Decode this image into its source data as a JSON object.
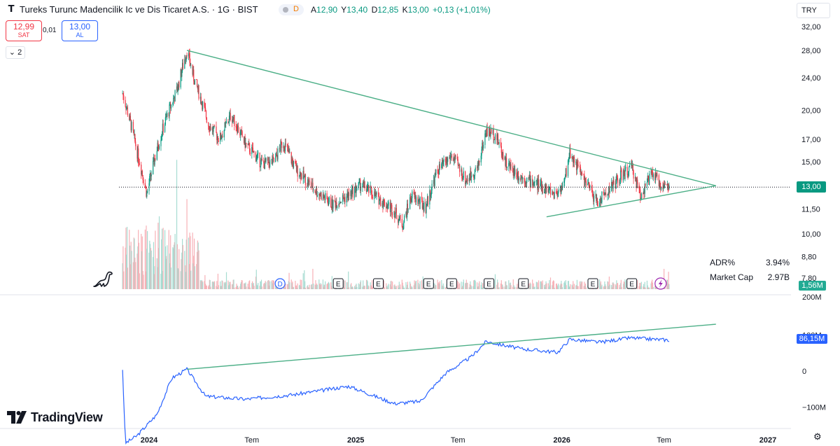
{
  "header": {
    "logo_letter": "T",
    "title": "Tureks Turunc Madencilik Ic ve Dis Ticaret A.S. · 1G · BIST",
    "delayed_badge": "D",
    "ohlc": [
      {
        "label": "A",
        "value": "12,90"
      },
      {
        "label": "Y",
        "value": "13,40"
      },
      {
        "label": "D",
        "value": "12,85"
      },
      {
        "label": "K",
        "value": "13,00"
      }
    ],
    "change": "+0,13 (+1,01%)",
    "currency": "TRY"
  },
  "trade": {
    "sell_price": "12,99",
    "sell_label": "SAT",
    "spread": "0,01",
    "buy_price": "13,00",
    "buy_label": "AL",
    "indicator_toggle": "2"
  },
  "stats": [
    {
      "label": "ADR%",
      "value": "3.94%"
    },
    {
      "label": "Market Cap",
      "value": "2.97B"
    }
  ],
  "badges": {
    "price": "13,00",
    "volume": "1,56M",
    "obv": "86,15M"
  },
  "colors": {
    "up": "#089981",
    "down": "#f23645",
    "trendline": "#4caf87",
    "obv_line": "#2962ff",
    "axis_text": "#131722"
  },
  "brand": "TradingView",
  "icons": [
    "settings-gear-icon",
    "dino-icon",
    "tradingview-logo-icon",
    "chevron-down-icon"
  ],
  "chart_data": {
    "type": "candlestick",
    "symbol": "Tureks Turunc Madencilik",
    "interval": "1G",
    "x_ticks": [
      "2024",
      "Tem",
      "2025",
      "Tem",
      "2026",
      "Tem",
      "2027"
    ],
    "price_axis_ticks": [
      "32,00",
      "28,00",
      "24,00",
      "20,00",
      "17,00",
      "15,00",
      "11,50",
      "10,00",
      "8,80",
      "7,80"
    ],
    "price_scale": "log",
    "price_range": [
      7.6,
      33.0
    ],
    "last_price": 13.0,
    "approx_price_path": [
      {
        "date": "2023-11-15",
        "price": 22.0
      },
      {
        "date": "2023-12-10",
        "price": 16.0
      },
      {
        "date": "2023-12-28",
        "price": 12.5
      },
      {
        "date": "2024-01-25",
        "price": 18.0
      },
      {
        "date": "2024-02-20",
        "price": 22.5
      },
      {
        "date": "2024-03-08",
        "price": 28.0
      },
      {
        "date": "2024-03-20",
        "price": 24.0
      },
      {
        "date": "2024-04-15",
        "price": 18.5
      },
      {
        "date": "2024-05-05",
        "price": 17.0
      },
      {
        "date": "2024-05-25",
        "price": 19.5
      },
      {
        "date": "2024-06-20",
        "price": 16.5
      },
      {
        "date": "2024-07-20",
        "price": 14.8
      },
      {
        "date": "2024-08-10",
        "price": 15.0
      },
      {
        "date": "2024-08-25",
        "price": 16.8
      },
      {
        "date": "2024-09-15",
        "price": 14.5
      },
      {
        "date": "2024-10-20",
        "price": 12.8
      },
      {
        "date": "2024-11-20",
        "price": 11.8
      },
      {
        "date": "2024-12-20",
        "price": 12.4
      },
      {
        "date": "2025-01-10",
        "price": 13.2
      },
      {
        "date": "2025-02-10",
        "price": 12.2
      },
      {
        "date": "2025-03-10",
        "price": 11.4
      },
      {
        "date": "2025-03-25",
        "price": 10.5
      },
      {
        "date": "2025-04-10",
        "price": 12.4
      },
      {
        "date": "2025-05-05",
        "price": 11.6
      },
      {
        "date": "2025-05-25",
        "price": 14.2
      },
      {
        "date": "2025-06-20",
        "price": 15.5
      },
      {
        "date": "2025-07-15",
        "price": 13.5
      },
      {
        "date": "2025-08-05",
        "price": 14.5
      },
      {
        "date": "2025-08-20",
        "price": 17.8
      },
      {
        "date": "2025-09-05",
        "price": 17.5
      },
      {
        "date": "2025-09-25",
        "price": 14.8
      },
      {
        "date": "2025-10-20",
        "price": 13.8
      },
      {
        "date": "2025-11-20",
        "price": 13.2
      },
      {
        "date": "2025-12-20",
        "price": 12.5
      },
      {
        "date": "2026-01-05",
        "price": 13.2
      },
      {
        "date": "2026-01-15",
        "price": 15.8
      },
      {
        "date": "2026-02-10",
        "price": 13.5
      },
      {
        "date": "2026-03-05",
        "price": 11.9
      },
      {
        "date": "2026-03-25",
        "price": 12.8
      },
      {
        "date": "2026-04-15",
        "price": 13.8
      },
      {
        "date": "2026-05-05",
        "price": 14.5
      },
      {
        "date": "2026-05-20",
        "price": 12.4
      },
      {
        "date": "2026-06-10",
        "price": 14.0
      },
      {
        "date": "2026-06-25",
        "price": 13.2
      },
      {
        "date": "2026-07-10",
        "price": 13.0
      }
    ],
    "triangle_trendlines": [
      {
        "start": {
          "date": "2024-03-08",
          "price": 28.0
        },
        "end": {
          "date": "2026-10-01",
          "price": 13.1
        }
      },
      {
        "start": {
          "date": "2025-12-05",
          "price": 11.0
        },
        "end": {
          "date": "2026-10-01",
          "price": 13.1
        }
      }
    ],
    "earnings_markers": [
      "2024-12-01",
      "2025-02-10",
      "2025-05-10",
      "2025-06-20",
      "2025-08-25",
      "2025-10-25",
      "2026-02-25",
      "2026-05-05"
    ],
    "dividend_marker": "2024-08-20",
    "upcoming_event_marker": "2026-06-25",
    "volume_axis_ticks": [
      "200M"
    ],
    "obv": {
      "axis_ticks": [
        "100M",
        "0",
        "−100M"
      ],
      "last_value_label": "86,15M",
      "approx_path": [
        {
          "date": "2023-11-15",
          "value": 5
        },
        {
          "date": "2023-11-20",
          "value": -200
        },
        {
          "date": "2023-12-10",
          "value": -180
        },
        {
          "date": "2024-01-15",
          "value": -120
        },
        {
          "date": "2024-02-10",
          "value": -20
        },
        {
          "date": "2024-03-08",
          "value": 5
        },
        {
          "date": "2024-04-10",
          "value": -70
        },
        {
          "date": "2024-06-20",
          "value": -78
        },
        {
          "date": "2024-09-15",
          "value": -65
        },
        {
          "date": "2024-12-20",
          "value": -42
        },
        {
          "date": "2025-03-10",
          "value": -90
        },
        {
          "date": "2025-04-25",
          "value": -84
        },
        {
          "date": "2025-06-10",
          "value": -5
        },
        {
          "date": "2025-07-25",
          "value": 40
        },
        {
          "date": "2025-08-20",
          "value": 82
        },
        {
          "date": "2025-10-20",
          "value": 62
        },
        {
          "date": "2025-12-25",
          "value": 52
        },
        {
          "date": "2026-01-15",
          "value": 88
        },
        {
          "date": "2026-03-10",
          "value": 80
        },
        {
          "date": "2026-05-01",
          "value": 92
        },
        {
          "date": "2026-07-10",
          "value": 86
        }
      ],
      "trendline": {
        "start": {
          "date": "2024-03-08",
          "value": 5
        },
        "end": {
          "date": "2026-10-01",
          "value": 130
        }
      }
    }
  }
}
